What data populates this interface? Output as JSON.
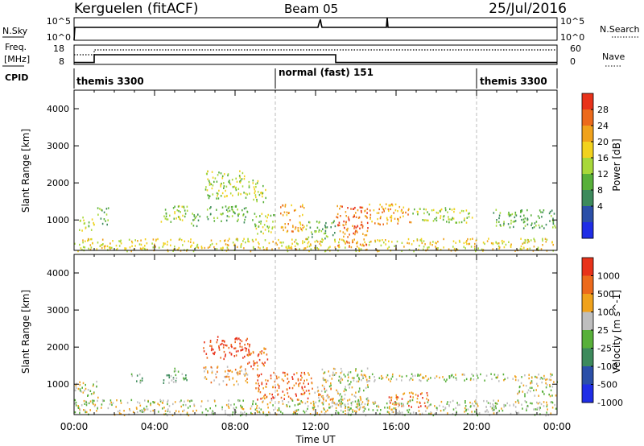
{
  "header": {
    "station": "Kerguelen (fitACF)",
    "beam": "Beam 05",
    "date": "25/Jul/2016"
  },
  "sky_panel": {
    "left_label": "N.Sky",
    "right_label": "N.Search",
    "left_ticks": [
      "10^5",
      "10^0"
    ],
    "right_ticks": [
      "10^5",
      "10^0"
    ]
  },
  "freq_panel": {
    "left_label_line1": "Freq.",
    "left_label_line2": "[MHz]",
    "right_label": "Nave",
    "left_ticks": [
      "18",
      "8"
    ],
    "right_ticks": [
      "60",
      "0"
    ]
  },
  "cpid": {
    "label": "CPID",
    "segments": [
      "themis 3300",
      "normal (fast) 151",
      "themis 3300"
    ]
  },
  "panels": {
    "power": {
      "ylabel": "Slant Range [km]",
      "yticks": [
        "4000",
        "3000",
        "2000",
        "1000"
      ],
      "colorbar_label": "Power [dB]",
      "colorbar_ticks": [
        "28",
        "24",
        "20",
        "16",
        "12",
        "8",
        "4"
      ],
      "colors": [
        "#1f2de6",
        "#2b4fa8",
        "#3d8a5c",
        "#58b03a",
        "#a8d83a",
        "#f2d21e",
        "#f0a21c",
        "#ec6a1c",
        "#e8321a"
      ]
    },
    "velocity": {
      "ylabel": "Slant Range [km]",
      "yticks": [
        "4000",
        "3000",
        "2000",
        "1000"
      ],
      "colorbar_label": "Velocity [m s^-1]",
      "colorbar_ticks": [
        "1000",
        "500",
        "100",
        "25",
        "-25",
        "-100",
        "-500",
        "-1000"
      ],
      "colors": [
        "#1f2de6",
        "#2b4fa8",
        "#3d8a5c",
        "#58b03a",
        "#bebebe",
        "#f0a21c",
        "#ec6a1c",
        "#e8321a"
      ]
    }
  },
  "xaxis": {
    "ticks": [
      "00:00",
      "04:00",
      "08:00",
      "12:00",
      "16:00",
      "20:00",
      "00:00"
    ],
    "label": "Time UT"
  },
  "chart_data": {
    "type": "heatmap",
    "x_range_hours": [
      0,
      24
    ],
    "y_range_km": [
      180,
      4500
    ],
    "cpid_changes_hours": [
      10,
      20
    ],
    "freq_mhz": [
      {
        "x": 0,
        "y": 9
      },
      {
        "x": 1,
        "y": 9
      },
      {
        "x": 1,
        "y": 13
      },
      {
        "x": 13,
        "y": 13
      },
      {
        "x": 13,
        "y": 9
      },
      {
        "x": 24,
        "y": 9
      }
    ],
    "nave": [
      {
        "x": 0,
        "y": 30
      },
      {
        "x": 1,
        "y": 30
      },
      {
        "x": 1,
        "y": 45
      },
      {
        "x": 24,
        "y": 45
      }
    ],
    "power_regions": [
      {
        "x0": 0.2,
        "x1": 1.0,
        "y0": 700,
        "y1": 1100,
        "level": 4
      },
      {
        "x0": 1.1,
        "x1": 1.7,
        "y0": 900,
        "y1": 1350,
        "level": 3
      },
      {
        "x0": 4.3,
        "x1": 5.6,
        "y0": 950,
        "y1": 1450,
        "level": 4
      },
      {
        "x0": 5.8,
        "x1": 6.3,
        "y0": 850,
        "y1": 1300,
        "level": 3
      },
      {
        "x0": 6.5,
        "x1": 8.6,
        "y0": 1600,
        "y1": 2350,
        "level": 4
      },
      {
        "x0": 6.5,
        "x1": 8.6,
        "y0": 950,
        "y1": 1400,
        "level": 3
      },
      {
        "x0": 8.6,
        "x1": 9.5,
        "y0": 1500,
        "y1": 2100,
        "level": 4
      },
      {
        "x0": 8.8,
        "x1": 10.0,
        "y0": 650,
        "y1": 1200,
        "level": 4
      },
      {
        "x0": 10.2,
        "x1": 11.4,
        "y0": 700,
        "y1": 1450,
        "level": 6
      },
      {
        "x0": 11.5,
        "x1": 13.0,
        "y0": 500,
        "y1": 1000,
        "level": 3
      },
      {
        "x0": 13.0,
        "x1": 14.6,
        "y0": 300,
        "y1": 1400,
        "level": 7
      },
      {
        "x0": 14.6,
        "x1": 16.8,
        "y0": 900,
        "y1": 1450,
        "level": 6
      },
      {
        "x0": 16.8,
        "x1": 19.8,
        "y0": 950,
        "y1": 1350,
        "level": 4
      },
      {
        "x0": 20.8,
        "x1": 23.9,
        "y0": 800,
        "y1": 1300,
        "level": 3
      },
      {
        "x0": 0.0,
        "x1": 24.0,
        "y0": 180,
        "y1": 520,
        "level": 5
      }
    ],
    "velocity_regions": [
      {
        "x0": 0.0,
        "x1": 1.2,
        "y0": 650,
        "y1": 1100,
        "level": 4
      },
      {
        "x0": 2.8,
        "x1": 3.4,
        "y0": 1000,
        "y1": 1300,
        "level": 3
      },
      {
        "x0": 4.4,
        "x1": 5.6,
        "y0": 1050,
        "y1": 1450,
        "level": 3
      },
      {
        "x0": 6.4,
        "x1": 8.8,
        "y0": 1700,
        "y1": 2300,
        "level": 7
      },
      {
        "x0": 6.4,
        "x1": 8.6,
        "y0": 1000,
        "y1": 1500,
        "level": 5
      },
      {
        "x0": 8.6,
        "x1": 9.6,
        "y0": 1400,
        "y1": 2000,
        "level": 6
      },
      {
        "x0": 9.0,
        "x1": 11.8,
        "y0": 600,
        "y1": 1350,
        "level": 6
      },
      {
        "x0": 11.8,
        "x1": 12.8,
        "y0": 500,
        "y1": 950,
        "level": 5
      },
      {
        "x0": 12.3,
        "x1": 14.6,
        "y0": 350,
        "y1": 1450,
        "level": 4
      },
      {
        "x0": 13.0,
        "x1": 22.0,
        "y0": 1100,
        "y1": 1300,
        "level": 4
      },
      {
        "x0": 15.6,
        "x1": 17.6,
        "y0": 400,
        "y1": 800,
        "level": 6
      },
      {
        "x0": 22.0,
        "x1": 24.0,
        "y0": 700,
        "y1": 1300,
        "level": 4
      },
      {
        "x0": 0.0,
        "x1": 24.0,
        "y0": 180,
        "y1": 600,
        "level": 4
      }
    ]
  }
}
